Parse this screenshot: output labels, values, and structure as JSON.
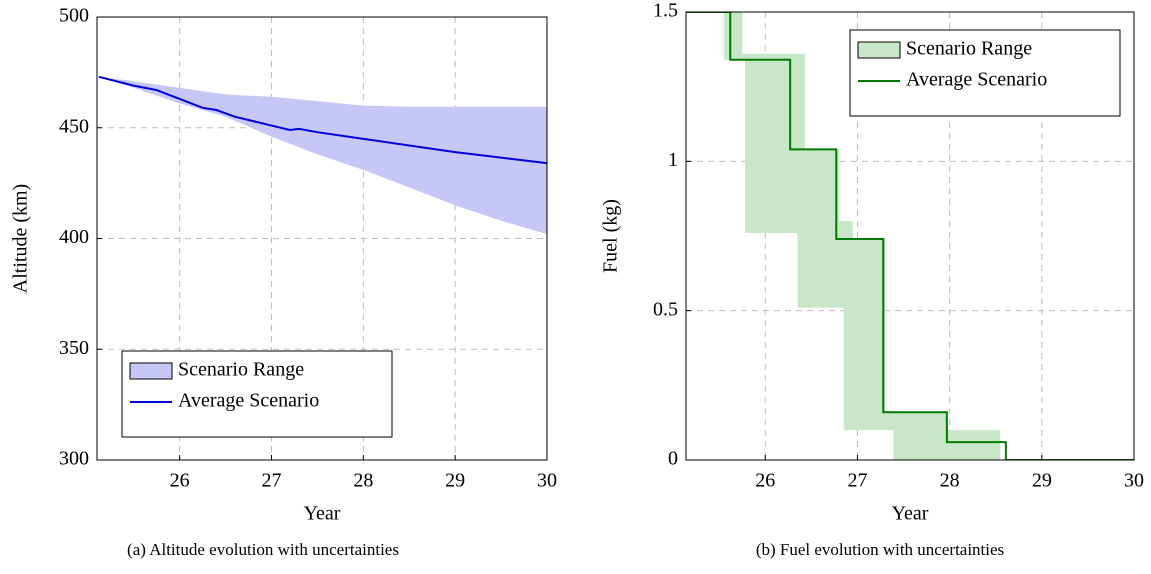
{
  "chart_data": [
    {
      "type": "line",
      "caption": "(a)  Altitude evolution with uncertainties",
      "xlabel": "Year",
      "ylabel": "Altitude (km)",
      "xlim": [
        25.1,
        30
      ],
      "ylim": [
        300,
        500
      ],
      "xticks": [
        26,
        27,
        28,
        29,
        30
      ],
      "yticks": [
        300,
        350,
        400,
        450,
        500
      ],
      "grid": true,
      "legend": "lower left",
      "series": [
        {
          "name": "Scenario Range",
          "color": "#c6c6f7",
          "x": [
            25.12,
            25.5,
            26,
            26.5,
            27,
            27.5,
            28,
            28.5,
            29,
            29.5,
            30
          ],
          "upper": [
            473,
            471,
            468,
            465,
            464,
            462,
            460,
            459.5,
            459.5,
            459.5,
            459.5
          ],
          "lower": [
            473,
            468,
            461,
            455,
            446,
            438,
            431,
            423,
            415,
            408,
            402
          ]
        },
        {
          "name": "Average Scenario",
          "color": "#0000dd",
          "x": [
            25.12,
            25.5,
            25.75,
            26,
            26.25,
            26.4,
            26.6,
            26.8,
            27,
            27.2,
            27.3,
            27.5,
            28,
            28.5,
            29,
            29.5,
            30
          ],
          "values": [
            473,
            469,
            467,
            463,
            459,
            458,
            455,
            453,
            451,
            449,
            449.5,
            448,
            445,
            442,
            439,
            436.5,
            434
          ]
        }
      ]
    },
    {
      "type": "line",
      "caption": "(b) Fuel evolution with uncertainties",
      "xlabel": "Year",
      "ylabel": "Fuel (kg)",
      "xlim": [
        25.14,
        30
      ],
      "ylim": [
        0,
        1.5
      ],
      "xticks": [
        26,
        27,
        28,
        29,
        30
      ],
      "yticks": [
        0,
        0.5,
        1,
        1.5
      ],
      "grid": true,
      "legend": "upper right",
      "series": [
        {
          "name": "Scenario Range",
          "color": "#c8e6c8",
          "x": [
            25.1,
            25.55,
            25.55,
            25.75,
            25.75,
            25.78,
            25.78,
            26.35,
            26.35,
            26.43,
            26.43,
            26.8,
            26.8,
            26.85,
            26.85,
            26.95,
            26.95,
            27.3,
            27.3,
            27.39,
            27.39,
            27.97,
            27.97,
            28.55,
            28.55,
            30
          ],
          "upper": [
            1.5,
            1.5,
            1.5,
            1.5,
            1.36,
            1.36,
            1.36,
            1.36,
            1.36,
            1.36,
            1.04,
            1.04,
            0.8,
            0.8,
            0.8,
            0.8,
            0.74,
            0.74,
            0.16,
            0.16,
            0.16,
            0.16,
            0.1,
            0.1,
            0,
            0
          ],
          "lower": [
            1.5,
            1.5,
            1.34,
            1.34,
            1.34,
            1.34,
            0.76,
            0.76,
            0.51,
            0.51,
            0.51,
            0.51,
            0.51,
            0.51,
            0.1,
            0.1,
            0.1,
            0.1,
            0.1,
            0.1,
            0,
            0,
            0,
            0,
            0,
            0
          ]
        },
        {
          "name": "Average Scenario",
          "color": "#007a00",
          "x": [
            25.1,
            25.62,
            25.62,
            26.27,
            26.27,
            26.77,
            26.77,
            27.28,
            27.28,
            27.97,
            27.97,
            28.61,
            28.61,
            30
          ],
          "values": [
            1.5,
            1.5,
            1.34,
            1.34,
            1.04,
            1.04,
            0.74,
            0.74,
            0.16,
            0.16,
            0.06,
            0.06,
            0,
            0
          ]
        }
      ]
    }
  ]
}
